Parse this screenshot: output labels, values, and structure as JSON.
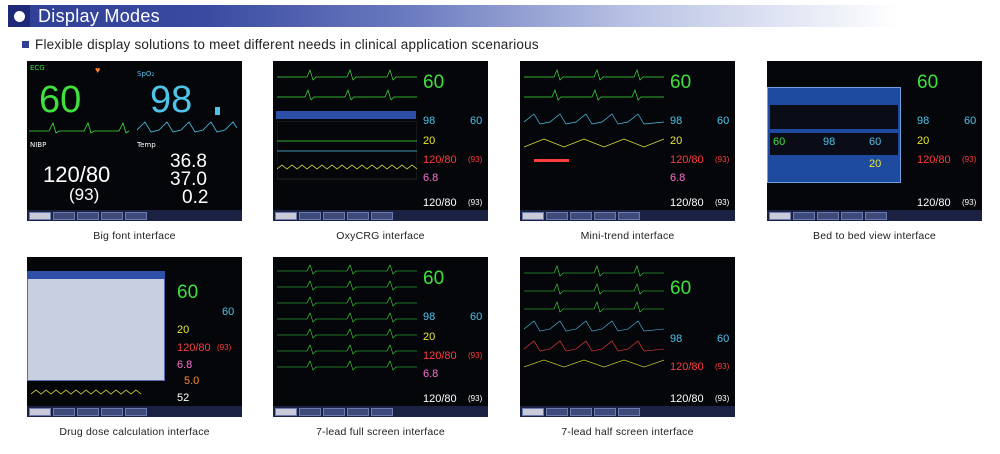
{
  "header": {
    "title": "Display Modes"
  },
  "subtitle": "Flexible display solutions to meet different needs in clinical application scenarious",
  "screens": {
    "big_font": {
      "caption": "Big font interface",
      "ecg_label": "ECG",
      "spo2_label": "SpO₂",
      "hr": "60",
      "spo2": "98",
      "nibp_label": "NIBP",
      "nibp": "120/80",
      "nibp_mean": "(93)",
      "temp_label": "Temp",
      "t1": "36.8",
      "t2": "37.0",
      "td": "0.2"
    },
    "oxycrg": {
      "caption": "OxyCRG interface",
      "hr": "60",
      "spo2": "98",
      "pr": "60",
      "resp": "20",
      "nibp": "120/80",
      "nibp_mean": "(93)",
      "co2": "6.8",
      "nibp2": "120/80",
      "nibp2_mean": "(93)"
    },
    "mini_trend": {
      "caption": "Mini-trend interface",
      "hr": "60",
      "spo2": "98",
      "pr": "60",
      "resp": "20",
      "nibp": "120/80",
      "nibp_mean": "(93)",
      "co2": "6.8",
      "nibp2": "120/80",
      "nibp2_mean": "(93)"
    },
    "bed_to_bed": {
      "caption": "Bed to bed view interface",
      "hr": "60",
      "spo2": "98",
      "pr": "60",
      "resp": "20",
      "nibp": "120/80",
      "nibp_mean": "(93)",
      "nibp2": "120/80",
      "nibp2_mean": "(93)",
      "inner_hr": "60",
      "inner_spo2": "98",
      "inner_pr": "60",
      "inner_resp": "20"
    },
    "drug_dose": {
      "caption": "Drug dose calculation interface",
      "hr": "60",
      "spo2": "60",
      "resp": "20",
      "nibp": "120/80",
      "nibp_mean": "(93)",
      "co2": "6.8",
      "val": "5.0",
      "val2": "52"
    },
    "lead7_full": {
      "caption": "7-lead full screen interface",
      "hr": "60",
      "spo2": "98",
      "pr": "60",
      "resp": "20",
      "nibp": "120/80",
      "nibp_mean": "(93)",
      "co2": "6.8",
      "nibp2": "120/80",
      "nibp2_mean": "(93)"
    },
    "lead7_half": {
      "caption": "7-lead half screen interface",
      "hr": "60",
      "spo2": "98",
      "pr": "60",
      "nibp": "120/80",
      "nibp_mean": "(93)",
      "nibp2": "120/80",
      "nibp2_mean": "(93)"
    }
  }
}
